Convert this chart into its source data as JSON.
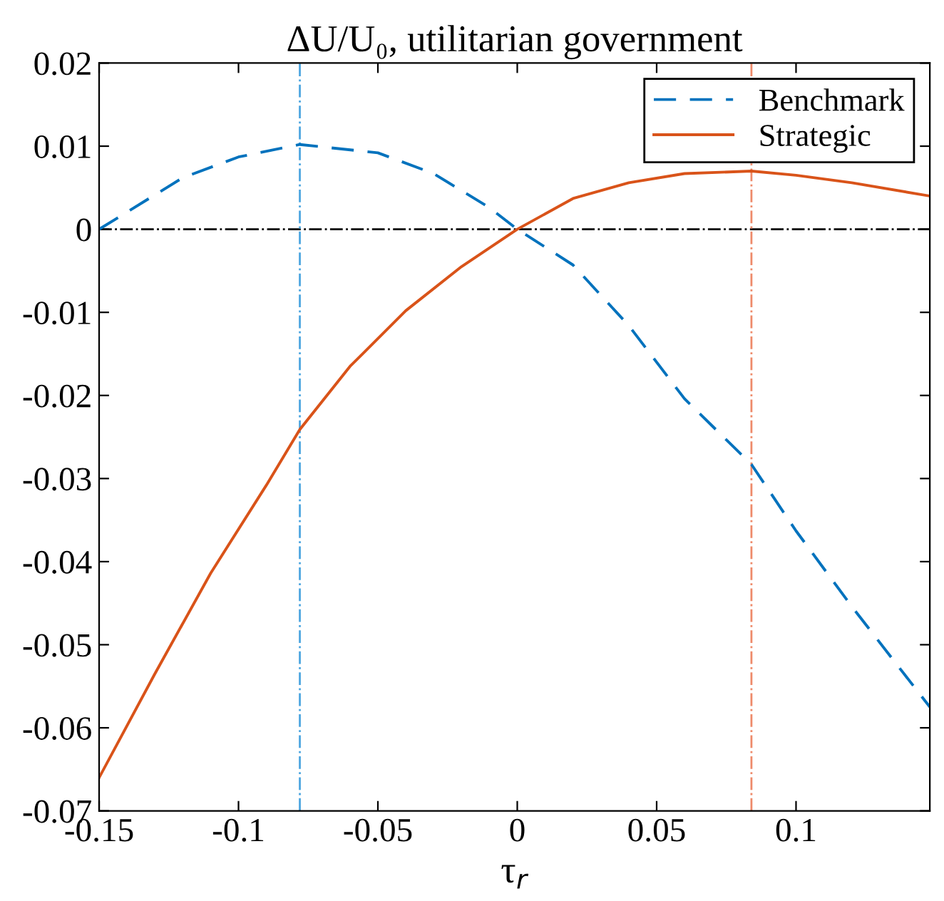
{
  "chart_data": {
    "type": "line",
    "title": "ΔU/U₀, utilitarian government",
    "xlabel": "τ$_{r}$",
    "xlim": [
      -0.15,
      0.148
    ],
    "xticks": [
      -0.15,
      -0.1,
      -0.05,
      0,
      0.05,
      0.1
    ],
    "ylim": [
      -0.07,
      0.02
    ],
    "yticks": [
      -0.07,
      -0.06,
      -0.05,
      -0.04,
      -0.03,
      -0.02,
      -0.01,
      0,
      0.01,
      0.02
    ],
    "grid": false,
    "legend": "top right",
    "series": [
      {
        "name": "Benchmark",
        "color": "#0072bd",
        "line_style": "dashed",
        "x": [
          -0.15,
          -0.12,
          -0.1,
          -0.078,
          -0.05,
          -0.03,
          -0.01,
          0,
          0.02,
          0.04,
          0.06,
          0.084,
          0.1,
          0.12,
          0.148
        ],
        "values": [
          0,
          0.0062,
          0.0087,
          0.0102,
          0.0092,
          0.0067,
          0.0026,
          0,
          -0.0043,
          -0.0116,
          -0.0204,
          -0.0283,
          -0.0363,
          -0.0454,
          -0.0575
        ]
      },
      {
        "name": "Strategic",
        "color": "#d95319",
        "line_style": "solid",
        "x": [
          -0.15,
          -0.13,
          -0.11,
          -0.09,
          -0.078,
          -0.06,
          -0.04,
          -0.02,
          0,
          0.02,
          0.04,
          0.06,
          0.084,
          0.1,
          0.12,
          0.148
        ],
        "values": [
          -0.066,
          -0.0535,
          -0.0414,
          -0.0308,
          -0.0241,
          -0.0165,
          -0.0098,
          -0.0045,
          0,
          0.0037,
          0.0056,
          0.0067,
          0.007,
          0.0065,
          0.0056,
          0.004
        ]
      }
    ],
    "ref_lines": [
      {
        "axis": "y",
        "value": 0,
        "color": "#000000",
        "line_style": "dashdot"
      },
      {
        "axis": "x",
        "value": -0.078,
        "color": "#4da6e0",
        "line_style": "dashdot"
      },
      {
        "axis": "x",
        "value": 0.084,
        "color": "#ee8a6a",
        "line_style": "dashdot"
      }
    ]
  }
}
